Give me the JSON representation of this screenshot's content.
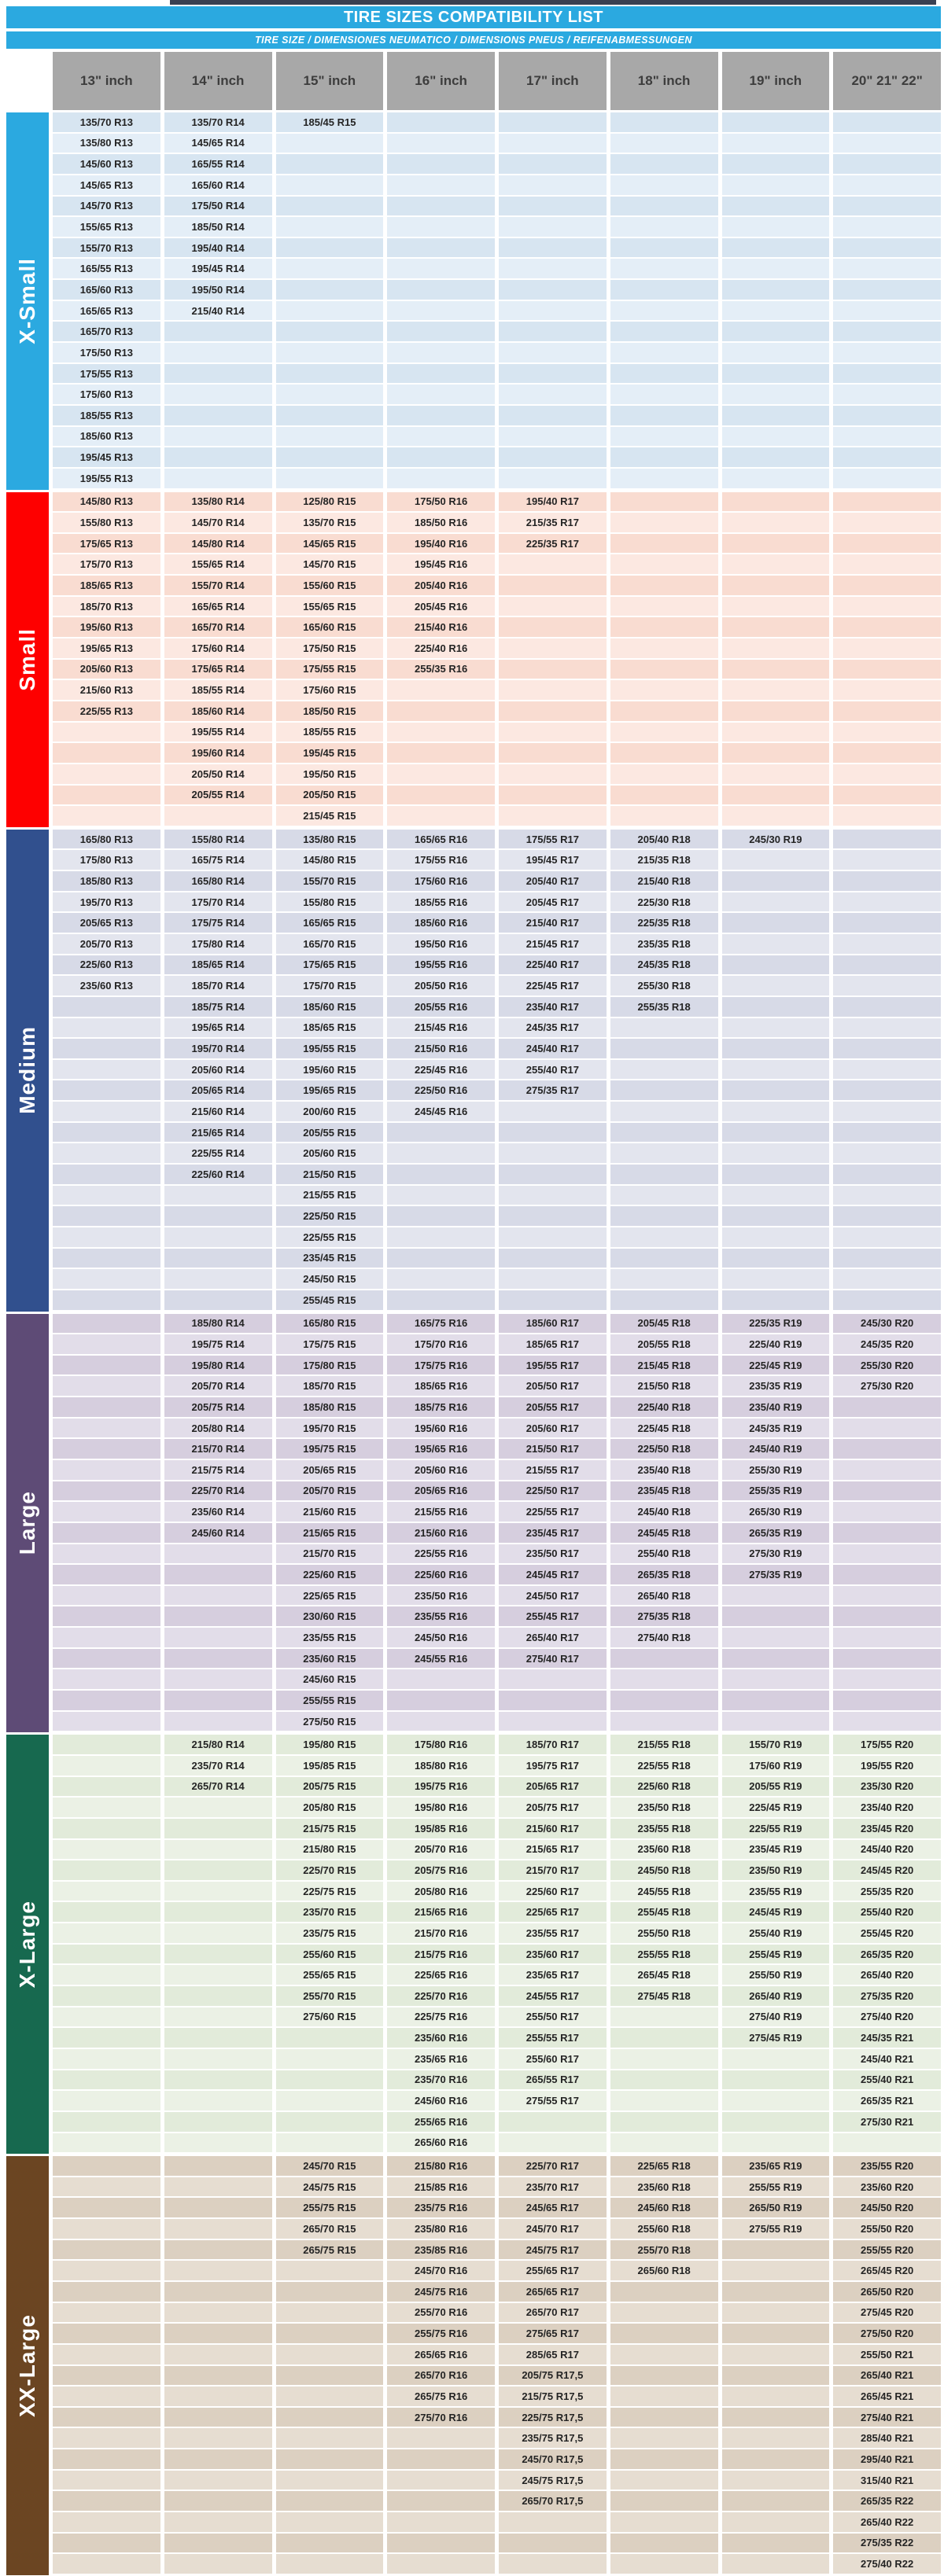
{
  "header": {
    "title": "TIRE SIZES COMPATIBILITY LIST",
    "subtitle": "TIRE SIZE  /  DIMENSIONES NEUMATICO  /  DIMENSIONS PNEUS  /  REIFENABMESSUNGEN",
    "title_bg": "#2ba9e0",
    "header_cell_bg": "#a8a8a8"
  },
  "columns": [
    "13\" inch",
    "14\" inch",
    "15\" inch",
    "16\" inch",
    "17\" inch",
    "18\" inch",
    "19\" inch",
    "20\" 21\" 22\""
  ],
  "sections": [
    {
      "label": "X-Small",
      "band": "#2ba9e0",
      "row_a": "#d7e5f1",
      "row_b": "#e4eef7",
      "rows": 18,
      "cols": [
        [
          "135/70 R13",
          "135/80 R13",
          "145/60 R13",
          "145/65 R13",
          "145/70 R13",
          "155/65 R13",
          "155/70 R13",
          "165/55 R13",
          "165/60 R13",
          "165/65 R13",
          "165/70 R13",
          "175/50 R13",
          "175/55 R13",
          "175/60 R13",
          "185/55 R13",
          "185/60 R13",
          "195/45 R13",
          "195/55 R13"
        ],
        [
          "135/70 R14",
          "145/65 R14",
          "165/55 R14",
          "165/60 R14",
          "175/50 R14",
          "185/50 R14",
          "195/40 R14",
          "195/45 R14",
          "195/50 R14",
          "215/40 R14"
        ],
        [
          "185/45 R15"
        ],
        [],
        [],
        [],
        [],
        []
      ]
    },
    {
      "label": "Small",
      "band": "#fe0000",
      "row_a": "#f9dcd1",
      "row_b": "#fce8e1",
      "rows": 16,
      "cols": [
        [
          "145/80 R13",
          "155/80 R13",
          "175/65 R13",
          "175/70 R13",
          "185/65 R13",
          "185/70 R13",
          "195/60 R13",
          "195/65 R13",
          "205/60 R13",
          "215/60 R13",
          "225/55 R13"
        ],
        [
          "135/80 R14",
          "145/70 R14",
          "145/80 R14",
          "155/65 R14",
          "155/70 R14",
          "165/65 R14",
          "165/70 R14",
          "175/60 R14",
          "175/65 R14",
          "185/55 R14",
          "185/60 R14",
          "195/55 R14",
          "195/60 R14",
          "205/50 R14",
          "205/55 R14"
        ],
        [
          "125/80 R15",
          "135/70 R15",
          "145/65 R15",
          "145/70 R15",
          "155/60 R15",
          "155/65 R15",
          "165/60 R15",
          "175/50 R15",
          "175/55 R15",
          "175/60 R15",
          "185/50 R15",
          "185/55 R15",
          "195/45 R15",
          "195/50 R15",
          "205/50 R15",
          "215/45 R15"
        ],
        [
          "175/50 R16",
          "185/50 R16",
          "195/40 R16",
          "195/45 R16",
          "205/40 R16",
          "205/45 R16",
          "215/40 R16",
          "225/40 R16",
          "255/35 R16"
        ],
        [
          "195/40 R17",
          "215/35 R17",
          "225/35 R17"
        ],
        [],
        [],
        []
      ]
    },
    {
      "label": "Medium",
      "band": "#31508e",
      "row_a": "#d7dae7",
      "row_b": "#e3e5ee",
      "rows": 23,
      "cols": [
        [
          "165/80 R13",
          "175/80 R13",
          "185/80 R13",
          "195/70 R13",
          "205/65 R13",
          "205/70 R13",
          "225/60 R13",
          "235/60 R13"
        ],
        [
          "155/80 R14",
          "165/75 R14",
          "165/80 R14",
          "175/70 R14",
          "175/75 R14",
          "175/80 R14",
          "185/65 R14",
          "185/70 R14",
          "185/75 R14",
          "195/65 R14",
          "195/70 R14",
          "205/60 R14",
          "205/65 R14",
          "215/60 R14",
          "215/65 R14",
          "225/55 R14",
          "225/60 R14"
        ],
        [
          "135/80 R15",
          "145/80 R15",
          "155/70 R15",
          "155/80 R15",
          "165/65 R15",
          "165/70 R15",
          "175/65 R15",
          "175/70 R15",
          "185/60 R15",
          "185/65 R15",
          "195/55 R15",
          "195/60 R15",
          "195/65 R15",
          "200/60 R15",
          "205/55 R15",
          "205/60 R15",
          "215/50 R15",
          "215/55 R15",
          "225/50 R15",
          "225/55 R15",
          "235/45 R15",
          "245/50 R15",
          "255/45 R15"
        ],
        [
          "165/65 R16",
          "175/55 R16",
          "175/60 R16",
          "185/55 R16",
          "185/60 R16",
          "195/50 R16",
          "195/55 R16",
          "205/50 R16",
          "205/55 R16",
          "215/45 R16",
          "215/50 R16",
          "225/45 R16",
          "225/50 R16",
          "245/45 R16"
        ],
        [
          "175/55 R17",
          "195/45 R17",
          "205/40 R17",
          "205/45 R17",
          "215/40 R17",
          "215/45 R17",
          "225/40 R17",
          "225/45 R17",
          "235/40 R17",
          "245/35 R17",
          "245/40 R17",
          "255/40 R17",
          "275/35 R17"
        ],
        [
          "205/40 R18",
          "215/35 R18",
          "215/40 R18",
          "225/30 R18",
          "225/35 R18",
          "235/35 R18",
          "245/35 R18",
          "255/30 R18",
          "255/35 R18"
        ],
        [
          "245/30 R19"
        ],
        []
      ]
    },
    {
      "label": "Large",
      "band": "#5e4b76",
      "row_a": "#d6cede",
      "row_b": "#e2dde9",
      "rows": 20,
      "cols": [
        [],
        [
          "185/80 R14",
          "195/75 R14",
          "195/80 R14",
          "205/70 R14",
          "205/75 R14",
          "205/80 R14",
          "215/70 R14",
          "215/75 R14",
          "225/70 R14",
          "235/60 R14",
          "245/60 R14"
        ],
        [
          "165/80 R15",
          "175/75 R15",
          "175/80 R15",
          "185/70 R15",
          "185/80 R15",
          "195/70 R15",
          "195/75 R15",
          "205/65 R15",
          "205/70 R15",
          "215/60 R15",
          "215/65 R15",
          "215/70 R15",
          "225/60 R15",
          "225/65 R15",
          "230/60 R15",
          "235/55 R15",
          "235/60 R15",
          "245/60 R15",
          "255/55 R15",
          "275/50 R15"
        ],
        [
          "165/75 R16",
          "175/70 R16",
          "175/75 R16",
          "185/65 R16",
          "185/75 R16",
          "195/60 R16",
          "195/65 R16",
          "205/60 R16",
          "205/65 R16",
          "215/55 R16",
          "215/60 R16",
          "225/55 R16",
          "225/60 R16",
          "235/50 R16",
          "235/55 R16",
          "245/50 R16",
          "245/55 R16"
        ],
        [
          "185/60 R17",
          "185/65 R17",
          "195/55 R17",
          "205/50 R17",
          "205/55 R17",
          "205/60 R17",
          "215/50 R17",
          "215/55 R17",
          "225/50 R17",
          "225/55 R17",
          "235/45 R17",
          "235/50 R17",
          "245/45 R17",
          "245/50 R17",
          "255/45 R17",
          "265/40 R17",
          "275/40 R17"
        ],
        [
          "205/45 R18",
          "205/55 R18",
          "215/45 R18",
          "215/50 R18",
          "225/40 R18",
          "225/45 R18",
          "225/50 R18",
          "235/40 R18",
          "235/45 R18",
          "245/40 R18",
          "245/45 R18",
          "255/40 R18",
          "265/35 R18",
          "265/40 R18",
          "275/35 R18",
          "275/40 R18"
        ],
        [
          "225/35 R19",
          "225/40 R19",
          "225/45 R19",
          "235/35 R19",
          "235/40 R19",
          "245/35 R19",
          "245/40 R19",
          "255/30 R19",
          "255/35 R19",
          "265/30 R19",
          "265/35 R19",
          "275/30 R19",
          "275/35 R19"
        ],
        [
          "245/30 R20",
          "245/35 R20",
          "255/30 R20",
          "275/30 R20"
        ]
      ]
    },
    {
      "label": "X-Large",
      "band": "#17694f",
      "row_a": "#e2ebda",
      "row_b": "#ebf1e5",
      "rows": 20,
      "cols": [
        [],
        [
          "215/80 R14",
          "235/70 R14",
          "265/70 R14"
        ],
        [
          "195/80 R15",
          "195/85 R15",
          "205/75 R15",
          "205/80 R15",
          "215/75 R15",
          "215/80 R15",
          "225/70 R15",
          "225/75 R15",
          "235/70 R15",
          "235/75 R15",
          "255/60 R15",
          "255/65 R15",
          "255/70 R15",
          "275/60 R15"
        ],
        [
          "175/80 R16",
          "185/80 R16",
          "195/75 R16",
          "195/80 R16",
          "195/85 R16",
          "205/70 R16",
          "205/75 R16",
          "205/80 R16",
          "215/65 R16",
          "215/70 R16",
          "215/75 R16",
          "225/65 R16",
          "225/70 R16",
          "225/75 R16",
          "235/60 R16",
          "235/65 R16",
          "235/70 R16",
          "245/60 R16",
          "255/65 R16",
          "265/60 R16"
        ],
        [
          "185/70 R17",
          "195/75 R17",
          "205/65 R17",
          "205/75 R17",
          "215/60 R17",
          "215/65 R17",
          "215/70 R17",
          "225/60 R17",
          "225/65 R17",
          "235/55 R17",
          "235/60 R17",
          "235/65 R17",
          "245/55 R17",
          "255/50 R17",
          "255/55 R17",
          "255/60 R17",
          "265/55 R17",
          "275/55 R17"
        ],
        [
          "215/55 R18",
          "225/55 R18",
          "225/60 R18",
          "235/50 R18",
          "235/55 R18",
          "235/60 R18",
          "245/50 R18",
          "245/55 R18",
          "255/45 R18",
          "255/50 R18",
          "255/55 R18",
          "265/45 R18",
          "275/45 R18"
        ],
        [
          "155/70 R19",
          "175/60 R19",
          "205/55 R19",
          "225/45 R19",
          "225/55 R19",
          "235/45 R19",
          "235/50 R19",
          "235/55 R19",
          "245/45 R19",
          "255/40 R19",
          "255/45 R19",
          "255/50 R19",
          "265/40 R19",
          "275/40 R19",
          "275/45 R19"
        ],
        [
          "175/55 R20",
          "195/55 R20",
          "235/30 R20",
          "235/40 R20",
          "235/45 R20",
          "245/40 R20",
          "245/45 R20",
          "255/35 R20",
          "255/40 R20",
          "255/45 R20",
          "265/35 R20",
          "265/40 R20",
          "275/35 R20",
          "275/40 R20",
          "245/35 R21",
          "245/40 R21",
          "255/40 R21",
          "265/35 R21",
          "275/30 R21"
        ]
      ]
    },
    {
      "label": "XX-Large",
      "band": "#6b4522",
      "row_a": "#dcd0c1",
      "row_b": "#e6ddd1",
      "rows": 20,
      "cols": [
        [],
        [],
        [
          "245/70 R15",
          "245/75 R15",
          "255/75 R15",
          "265/70 R15",
          "265/75 R15"
        ],
        [
          "215/80 R16",
          "215/85 R16",
          "235/75 R16",
          "235/80 R16",
          "235/85 R16",
          "245/70 R16",
          "245/75 R16",
          "255/70 R16",
          "255/75 R16",
          "265/65 R16",
          "265/70 R16",
          "265/75 R16",
          "275/70 R16"
        ],
        [
          "225/70 R17",
          "235/70 R17",
          "245/65 R17",
          "245/70 R17",
          "245/75 R17",
          "255/65 R17",
          "265/65 R17",
          "265/70 R17",
          "275/65 R17",
          "285/65 R17",
          "205/75 R17,5",
          "215/75 R17,5",
          "225/75 R17,5",
          "235/75 R17,5",
          "245/70 R17,5",
          "245/75 R17,5",
          "265/70 R17,5"
        ],
        [
          "225/65 R18",
          "235/60 R18",
          "245/60 R18",
          "255/60 R18",
          "255/70 R18",
          "265/60 R18"
        ],
        [
          "235/65 R19",
          "255/55 R19",
          "265/50 R19",
          "275/55 R19"
        ],
        [
          "235/55 R20",
          "235/60 R20",
          "245/50 R20",
          "255/50 R20",
          "255/55 R20",
          "265/45 R20",
          "265/50 R20",
          "275/45 R20",
          "275/50 R20",
          "255/50 R21",
          "265/40 R21",
          "265/45 R21",
          "275/40 R21",
          "285/40 R21",
          "295/40 R21",
          "315/40 R21",
          "265/35 R22",
          "265/40 R22",
          "275/35 R22",
          "275/40 R22"
        ]
      ]
    }
  ]
}
